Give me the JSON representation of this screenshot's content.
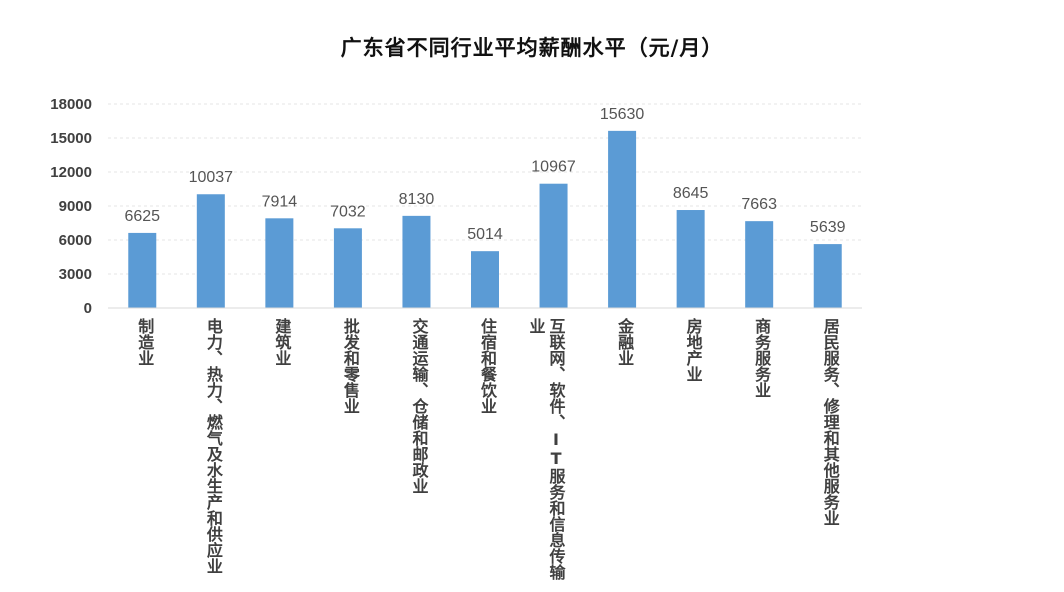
{
  "chart_data": {
    "type": "bar",
    "title": "广东省不同行业平均薪酬水平（元/月）",
    "xlabel": "",
    "ylabel": "",
    "ylim": [
      0,
      18000
    ],
    "yticks": [
      0,
      3000,
      6000,
      9000,
      12000,
      15000,
      18000
    ],
    "grid": true,
    "bar_color": "#5b9bd5",
    "categories": [
      "制造业",
      "电力、热力、燃气及水生产和供应业",
      "建筑业",
      "批发和零售业",
      "交通运输、仓储和邮政业",
      "住宿和餐饮业",
      "互联网、软件、IT服务和信息传输业",
      "金融业",
      "房地产业",
      "商务服务业",
      "居民服务、修理和其他服务业"
    ],
    "values": [
      6625,
      10037,
      7914,
      7032,
      8130,
      5014,
      10967,
      15630,
      8645,
      7663,
      5639
    ]
  }
}
